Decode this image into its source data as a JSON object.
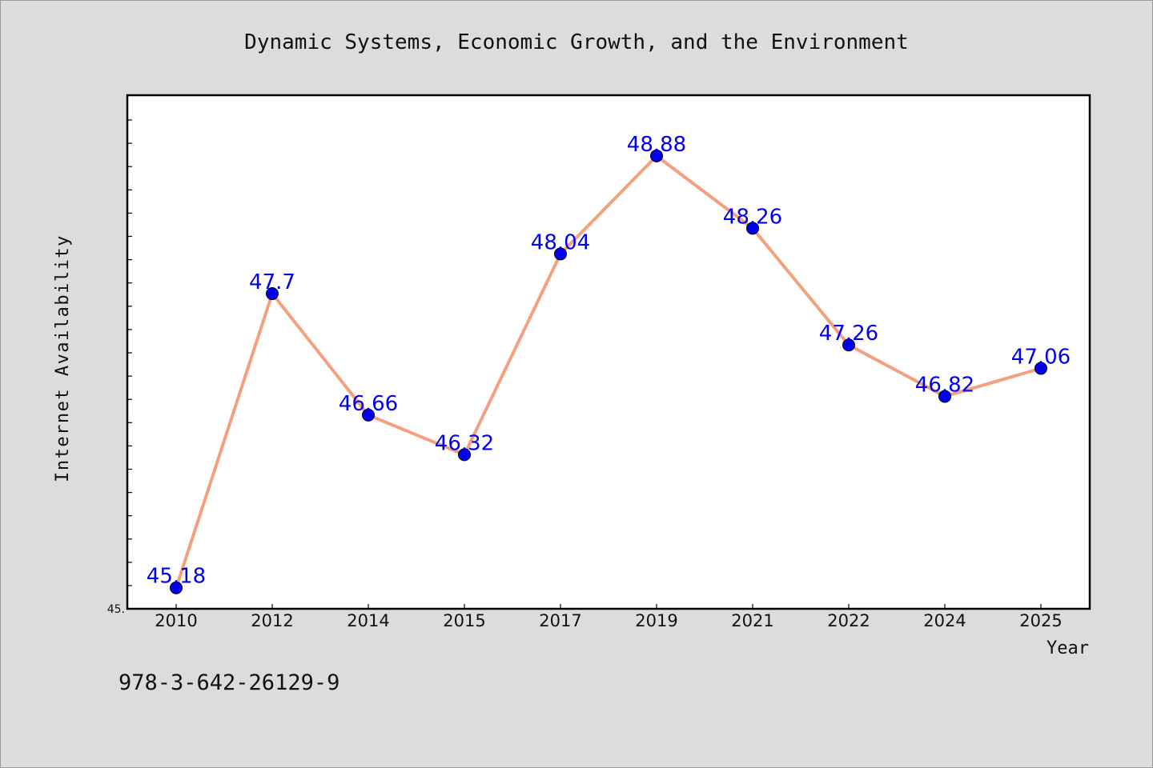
{
  "chart_data": {
    "type": "line",
    "title": "Dynamic Systems, Economic Growth, and the Environment",
    "xlabel": "Year",
    "ylabel": "Internet Availability",
    "categories": [
      "2010",
      "2012",
      "2014",
      "2015",
      "2017",
      "2019",
      "2021",
      "2022",
      "2024",
      "2025"
    ],
    "values": [
      45.18,
      47.7,
      46.66,
      46.32,
      48.04,
      48.88,
      48.26,
      47.26,
      46.82,
      47.06
    ],
    "data_labels": [
      "45.18",
      "47.7",
      "46.66",
      "46.32",
      "48.04",
      "48.88",
      "48.26",
      "47.26",
      "46.82",
      "47.06"
    ],
    "ylim": [
      45,
      49.4
    ],
    "y_tick_labels": [
      "45."
    ],
    "grid": false,
    "colors": {
      "line": "#f4a07e",
      "marker": "#0000ee",
      "data_label": "#0000ee",
      "axes_frame": "#000000"
    }
  },
  "footer": {
    "isbn": "978-3-642-26129-9"
  }
}
